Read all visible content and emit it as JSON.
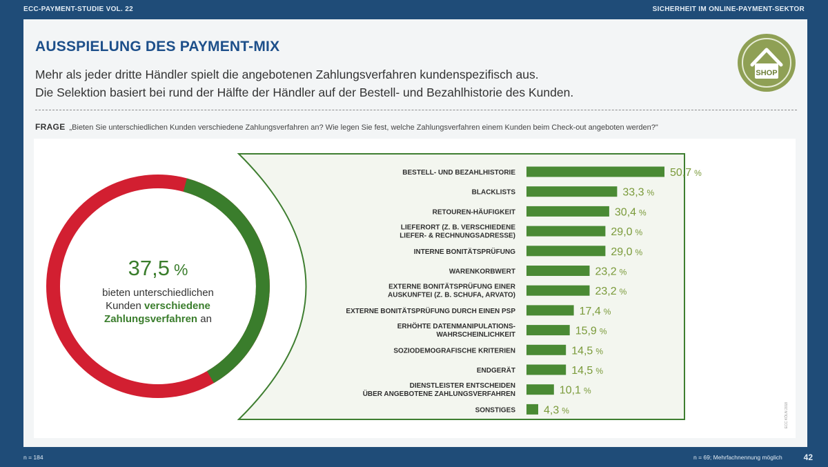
{
  "header": {
    "left": "ECC-PAYMENT-STUDIE VOL. 22",
    "right": "SICHERHEIT IM ONLINE-PAYMENT-SEKTOR"
  },
  "title": "AUSSPIELUNG DES PAYMENT-MIX",
  "subtitle_line1": "Mehr als jeder dritte Händler spielt die angebotenen Zahlungsverfahren kundenspezifisch aus.",
  "subtitle_line2": "Die Selektion basiert bei rund der Hälfte der Händler auf der Bestell- und Bezahlhistorie des Kunden.",
  "frage": {
    "label": "FRAGE",
    "text": "„Bieten Sie unterschiedlichen Kunden verschiedene Zahlungsverfahren an? Wie legen Sie fest, welche Zahlungsverfahren einem Kunden beim Check-out angeboten werden?\""
  },
  "shop_label": "SHOP",
  "donut": {
    "value_text": "37,5",
    "unit": "%",
    "text1": "bieten unterschiedlichen",
    "text2": "Kunden ",
    "text2_bold": "verschiedene",
    "text3_bold": "Zahlungsverfahren",
    "text3": " an",
    "share": 37.5,
    "color_yes": "#3a7d2c",
    "color_no": "#d21f31"
  },
  "chart_data": {
    "type": "bar",
    "orientation": "horizontal",
    "categories": [
      [
        "BESTELL- UND BEZAHLHISTORIE"
      ],
      [
        "BLACKLISTS"
      ],
      [
        "RETOUREN-HÄUFIGKEIT"
      ],
      [
        "LIEFERORT (Z. B. VERSCHIEDENE",
        "LIEFER- & RECHNUNGSADRESSE)"
      ],
      [
        "INTERNE BONITÄTSPRÜFUNG"
      ],
      [
        "WARENKORBWERT"
      ],
      [
        "EXTERNE BONITÄTSPRÜFUNG EINER",
        "AUSKUNFTEI (Z. B. SCHUFA, ARVATO)"
      ],
      [
        "EXTERNE BONITÄTSPRÜFUNG DURCH EINEN PSP"
      ],
      [
        "ERHÖHTE DATENMANIPULATIONS-",
        "WAHRSCHEINLICHKEIT"
      ],
      [
        "SOZIODEMOGRAFISCHE KRITERIEN"
      ],
      [
        "ENDGERÄT"
      ],
      [
        "DIENSTLEISTER ENTSCHEIDEN",
        "ÜBER ANGEBOTENE ZAHLUNGSVERFAHREN"
      ],
      [
        "SONSTIGES"
      ]
    ],
    "values": [
      50.7,
      33.3,
      30.4,
      29.0,
      29.0,
      23.2,
      23.2,
      17.4,
      15.9,
      14.5,
      14.5,
      10.1,
      4.3
    ],
    "value_labels": [
      "50,7",
      "33,3",
      "30,4",
      "29,0",
      "29,0",
      "23,2",
      "23,2",
      "17,4",
      "15,9",
      "14,5",
      "14,5",
      "10,1",
      "4,3"
    ],
    "unit": "%",
    "bar_color": "#4a8a34",
    "label_color": "#7a9a3a"
  },
  "side_note": "ECC KÖLN 2018",
  "footer": {
    "left": "n = 184",
    "right": "n = 69; Mehrfachnennung möglich",
    "page": "42"
  }
}
